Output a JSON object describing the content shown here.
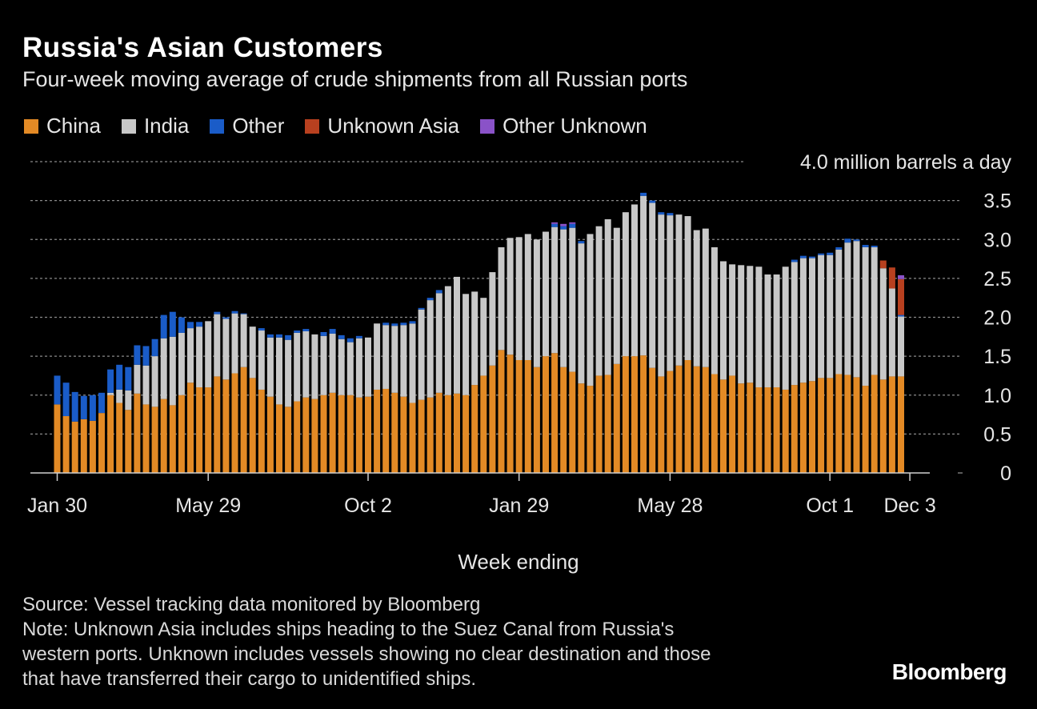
{
  "title": "Russia's Asian Customers",
  "subtitle": "Four-week moving average of crude shipments from all Russian ports",
  "legend": [
    {
      "label": "China",
      "color": "#e38a25"
    },
    {
      "label": "India",
      "color": "#c8c8c8"
    },
    {
      "label": "Other",
      "color": "#1a5cc8"
    },
    {
      "label": "Unknown Asia",
      "color": "#b8401f"
    },
    {
      "label": "Other Unknown",
      "color": "#8a52c8"
    }
  ],
  "footer": {
    "source": "Source: Vessel tracking data monitored by Bloomberg",
    "note_lines": [
      "Note: Unknown Asia includes ships heading to the Suez Canal from Russia's",
      "western ports. Unknown includes vessels showing no clear destination and those",
      "that have transferred their cargo to unidentified ships."
    ],
    "brand": "Bloomberg"
  },
  "chart_data": {
    "type": "bar",
    "stacked": true,
    "title": "Russia's Asian Customers",
    "unit_label": "4.0 million barrels a day",
    "xlabel": "Week ending",
    "ylabel": "",
    "ylim": [
      0,
      4.0
    ],
    "yticks": [
      "0",
      "0.5",
      "1.0",
      "1.5",
      "2.0",
      "2.5",
      "3.0",
      "3.5"
    ],
    "xticks": [
      {
        "label": "Jan 30",
        "index": 0
      },
      {
        "label": "May 29",
        "index": 17
      },
      {
        "label": "Oct 2",
        "index": 35
      },
      {
        "label": "Jan 29",
        "index": 52
      },
      {
        "label": "May 28",
        "index": 69
      },
      {
        "label": "Oct 1",
        "index": 87
      },
      {
        "label": "Dec 3",
        "index": 96
      }
    ],
    "series": [
      {
        "name": "China",
        "color": "#e38a25",
        "values": [
          0.88,
          0.73,
          0.66,
          0.69,
          0.67,
          0.77,
          1.0,
          0.9,
          0.81,
          1.02,
          0.88,
          0.85,
          0.95,
          0.87,
          1.0,
          1.16,
          1.1,
          1.1,
          1.24,
          1.2,
          1.28,
          1.36,
          1.22,
          1.07,
          0.98,
          0.88,
          0.85,
          0.92,
          0.97,
          0.95,
          1.0,
          1.03,
          1.0,
          1.0,
          0.97,
          0.98,
          1.07,
          1.08,
          1.03,
          0.98,
          0.9,
          0.94,
          0.97,
          1.03,
          1.0,
          1.02,
          1.0,
          1.13,
          1.25,
          1.38,
          1.58,
          1.52,
          1.45,
          1.45,
          1.36,
          1.5,
          1.54,
          1.36,
          1.3,
          1.15,
          1.12,
          1.25,
          1.26,
          1.4,
          1.5,
          1.5,
          1.51,
          1.35,
          1.24,
          1.31,
          1.38,
          1.45,
          1.37,
          1.36,
          1.27,
          1.2,
          1.25,
          1.15,
          1.16,
          1.1,
          1.1,
          1.1,
          1.07,
          1.13,
          1.16,
          1.18,
          1.22,
          1.22,
          1.27,
          1.26,
          1.23,
          1.12,
          1.26,
          1.2,
          1.24,
          1.24
        ]
      },
      {
        "name": "India",
        "color": "#c8c8c8",
        "values": [
          0.0,
          0.0,
          0.0,
          0.0,
          0.0,
          0.0,
          0.03,
          0.17,
          0.25,
          0.37,
          0.5,
          0.65,
          0.78,
          0.88,
          0.8,
          0.7,
          0.78,
          0.85,
          0.8,
          0.78,
          0.77,
          0.68,
          0.66,
          0.76,
          0.76,
          0.86,
          0.86,
          0.88,
          0.85,
          0.83,
          0.76,
          0.76,
          0.72,
          0.68,
          0.76,
          0.76,
          0.85,
          0.82,
          0.86,
          0.92,
          1.02,
          1.16,
          1.25,
          1.28,
          1.4,
          1.5,
          1.3,
          1.2,
          1.0,
          1.2,
          1.32,
          1.5,
          1.58,
          1.62,
          1.64,
          1.6,
          1.62,
          1.77,
          1.85,
          1.8,
          1.95,
          1.92,
          2.0,
          1.75,
          1.85,
          1.95,
          2.05,
          2.12,
          2.08,
          2.0,
          1.94,
          1.85,
          1.75,
          1.78,
          1.63,
          1.52,
          1.43,
          1.52,
          1.5,
          1.55,
          1.45,
          1.45,
          1.58,
          1.58,
          1.6,
          1.58,
          1.58,
          1.58,
          1.6,
          1.7,
          1.75,
          1.78,
          1.64,
          1.43,
          1.13,
          0.77
        ]
      },
      {
        "name": "Other",
        "color": "#1a5cc8",
        "values": [
          0.37,
          0.43,
          0.38,
          0.3,
          0.33,
          0.26,
          0.3,
          0.32,
          0.3,
          0.25,
          0.25,
          0.22,
          0.3,
          0.32,
          0.2,
          0.08,
          0.06,
          0.0,
          0.03,
          0.02,
          0.03,
          0.01,
          0.0,
          0.03,
          0.04,
          0.04,
          0.06,
          0.03,
          0.03,
          0.0,
          0.05,
          0.06,
          0.05,
          0.05,
          0.03,
          0.0,
          0.0,
          0.03,
          0.03,
          0.03,
          0.03,
          0.02,
          0.03,
          0.04,
          0.0,
          0.0,
          0.0,
          0.0,
          0.0,
          0.0,
          0.0,
          0.0,
          0.0,
          0.0,
          0.0,
          0.0,
          0.04,
          0.04,
          0.05,
          0.03,
          0.0,
          0.0,
          0.0,
          0.0,
          0.0,
          0.0,
          0.04,
          0.03,
          0.03,
          0.03,
          0.0,
          0.0,
          0.0,
          0.0,
          0.0,
          0.0,
          0.0,
          0.0,
          0.0,
          0.0,
          0.0,
          0.0,
          0.0,
          0.03,
          0.03,
          0.02,
          0.02,
          0.03,
          0.03,
          0.05,
          0.02,
          0.03,
          0.02,
          0.0,
          0.0,
          0.02
        ]
      },
      {
        "name": "Unknown Asia",
        "color": "#b8401f",
        "values": [
          0,
          0,
          0,
          0,
          0,
          0,
          0,
          0,
          0,
          0,
          0,
          0,
          0,
          0,
          0,
          0,
          0,
          0,
          0,
          0,
          0,
          0,
          0,
          0,
          0,
          0,
          0,
          0,
          0,
          0,
          0,
          0,
          0,
          0,
          0,
          0,
          0,
          0,
          0,
          0,
          0,
          0,
          0,
          0,
          0,
          0,
          0,
          0,
          0,
          0,
          0,
          0,
          0,
          0,
          0,
          0,
          0,
          0,
          0,
          0,
          0,
          0,
          0,
          0,
          0,
          0,
          0,
          0,
          0,
          0,
          0,
          0,
          0,
          0,
          0,
          0,
          0,
          0,
          0,
          0,
          0,
          0,
          0,
          0,
          0,
          0,
          0,
          0,
          0,
          0,
          0,
          0,
          0,
          0.1,
          0.27,
          0.46
        ]
      },
      {
        "name": "Other Unknown",
        "color": "#8a52c8",
        "values": [
          0,
          0,
          0,
          0,
          0,
          0,
          0,
          0,
          0,
          0,
          0,
          0,
          0,
          0,
          0,
          0,
          0,
          0,
          0,
          0,
          0,
          0,
          0,
          0,
          0,
          0,
          0,
          0,
          0,
          0,
          0,
          0,
          0,
          0,
          0,
          0,
          0,
          0,
          0,
          0,
          0,
          0,
          0,
          0,
          0,
          0,
          0,
          0,
          0,
          0,
          0,
          0,
          0,
          0,
          0,
          0,
          0.02,
          0.03,
          0.02,
          0,
          0,
          0,
          0,
          0,
          0,
          0,
          0,
          0,
          0,
          0,
          0,
          0,
          0,
          0,
          0,
          0,
          0,
          0,
          0,
          0,
          0,
          0,
          0,
          0,
          0,
          0,
          0,
          0,
          0,
          0,
          0,
          0,
          0,
          0,
          0,
          0.05
        ]
      }
    ]
  }
}
